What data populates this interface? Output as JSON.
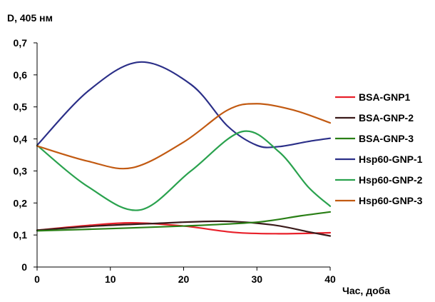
{
  "chart_data": {
    "type": "line",
    "ylabel": "D, 405 нм",
    "xlabel": "Час, доба",
    "xlim": [
      0,
      40
    ],
    "ylim": [
      0,
      0.7
    ],
    "x_ticks": [
      0,
      10,
      20,
      30,
      40
    ],
    "x_tick_labels": [
      "0",
      "10",
      "20",
      "30",
      "40"
    ],
    "y_ticks": [
      0,
      0.1,
      0.2,
      0.3,
      0.4,
      0.5,
      0.6,
      0.7
    ],
    "y_tick_labels": [
      "0",
      "0,1",
      "0,2",
      "0,3",
      "0,4",
      "0,5",
      "0,6",
      "0,7"
    ],
    "grid": false,
    "legend_position": "right",
    "series": [
      {
        "name": "BSA-GNP1",
        "color": "#e8202a",
        "x": [
          0,
          7,
          13,
          20,
          27,
          33,
          40
        ],
        "y": [
          0.115,
          0.13,
          0.138,
          0.128,
          0.108,
          0.104,
          0.107
        ]
      },
      {
        "name": "BSA-GNP-2",
        "color": "#3a1a1a",
        "x": [
          0,
          8,
          15,
          25,
          32,
          37,
          40
        ],
        "y": [
          0.115,
          0.128,
          0.135,
          0.143,
          0.132,
          0.11,
          0.097
        ]
      },
      {
        "name": "BSA-GNP-3",
        "color": "#2a7f16",
        "x": [
          0,
          10,
          20,
          30,
          36,
          40
        ],
        "y": [
          0.113,
          0.12,
          0.128,
          0.14,
          0.16,
          0.172
        ]
      },
      {
        "name": "Hsp60-GNP-1",
        "color": "#2b2f88",
        "x": [
          0,
          7,
          14,
          21,
          26,
          30,
          33,
          37,
          40
        ],
        "y": [
          0.38,
          0.55,
          0.64,
          0.57,
          0.44,
          0.38,
          0.376,
          0.392,
          0.402
        ]
      },
      {
        "name": "Hsp60-GNP-2",
        "color": "#2aa24e",
        "x": [
          0,
          7,
          14,
          21,
          28,
          33,
          37,
          40
        ],
        "y": [
          0.38,
          0.25,
          0.178,
          0.3,
          0.423,
          0.36,
          0.25,
          0.19
        ]
      },
      {
        "name": "Hsp60-GNP-3",
        "color": "#c25a12",
        "x": [
          0,
          7,
          13,
          20,
          26,
          30,
          35,
          40
        ],
        "y": [
          0.378,
          0.33,
          0.31,
          0.39,
          0.49,
          0.51,
          0.49,
          0.45
        ]
      }
    ]
  }
}
